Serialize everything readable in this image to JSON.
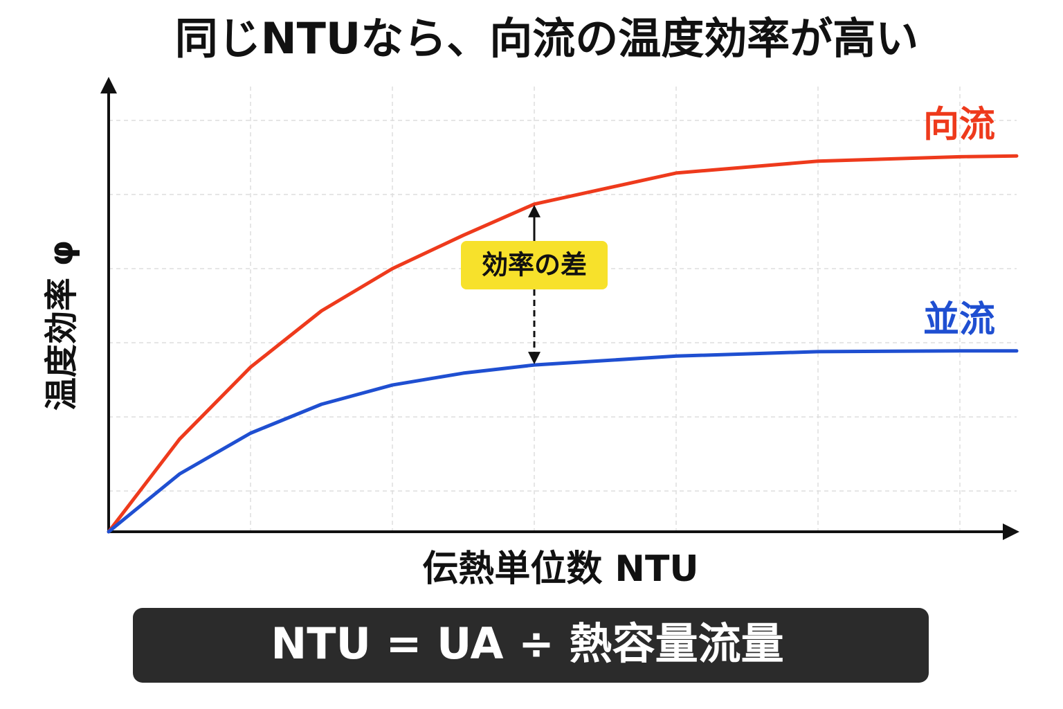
{
  "chart_data": {
    "type": "line",
    "title": "同じNTUなら、向流の温度効率が高い",
    "x_label": "伝熱単位数 NTU",
    "y_label": "温度効率 φ",
    "annotation": "効率の差",
    "formula": "NTU = UA ÷ 熱容量流量",
    "x": [
      0,
      0.5,
      1,
      1.5,
      2,
      2.5,
      3,
      4,
      5,
      6,
      6.4
    ],
    "series": [
      {
        "name": "向流",
        "color": "#ee3a1c",
        "values": [
          0,
          1.25,
          2.22,
          2.98,
          3.55,
          4.0,
          4.42,
          4.84,
          5.0,
          5.06,
          5.07
        ]
      },
      {
        "name": "並流",
        "color": "#1f4fd1",
        "values": [
          0,
          0.78,
          1.33,
          1.72,
          1.98,
          2.14,
          2.25,
          2.37,
          2.43,
          2.44,
          2.44
        ]
      }
    ],
    "xlim": [
      0,
      6.4
    ],
    "ylim": [
      0,
      6.1
    ],
    "xticks": [
      1,
      2,
      3,
      4,
      5,
      6
    ],
    "yticks": [
      0.55,
      1.55,
      2.55,
      3.55,
      4.55,
      5.55
    ],
    "grid": true,
    "annotation_x_index": 6
  }
}
